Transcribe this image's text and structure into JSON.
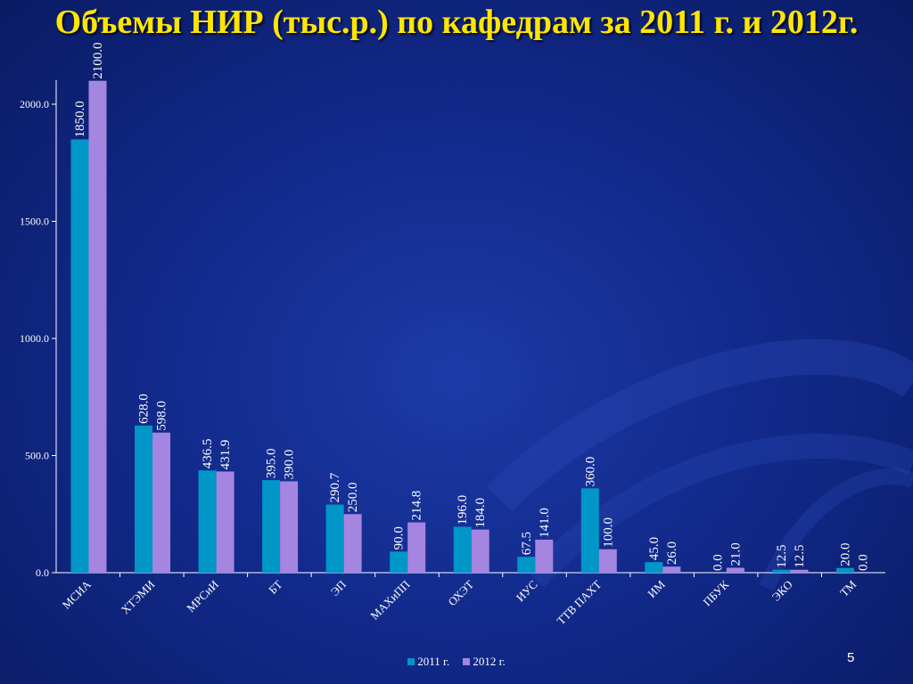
{
  "slide": {
    "title": "Объемы НИР (тыс.р.) по кафедрам за 2011 г. и 2012г.",
    "page_number": "5"
  },
  "colors": {
    "series_2011": "#0096c8",
    "series_2012": "#a485e0",
    "title": "#ffe600",
    "text": "#ffffff"
  },
  "chart_data": {
    "type": "bar",
    "title": "",
    "xlabel": "",
    "ylabel": "",
    "ylim": [
      0,
      2100
    ],
    "yticks": [
      "0.0",
      "500.0",
      "1000.0",
      "1500.0",
      "2000.0"
    ],
    "grid": false,
    "legend_position": "bottom",
    "categories": [
      "МСИА",
      "ХТЭМИ",
      "МРСиИ",
      "БТ",
      "ЭП",
      "МАХиПП",
      "ОХЭТ",
      "ИУС",
      "ТТВ ПАХТ",
      "ИМ",
      "ПБУК",
      "ЭКО",
      "ТМ"
    ],
    "series": [
      {
        "name": "2011 г.",
        "values": [
          1850.0,
          628.0,
          436.5,
          395.0,
          290.7,
          90.0,
          196.0,
          67.5,
          360.0,
          45.0,
          0.0,
          12.5,
          20.0
        ],
        "labels": [
          "1850.0",
          "628.0",
          "436.5",
          "395.0",
          "290.7",
          "90.0",
          "196.0",
          "67.5",
          "360.0",
          "45.0",
          "0.0",
          "12.5",
          "20.0"
        ]
      },
      {
        "name": "2012 г.",
        "values": [
          2100.0,
          598.0,
          431.9,
          390.0,
          250.0,
          214.8,
          184.0,
          141.0,
          100.0,
          26.0,
          21.0,
          12.5,
          0.0
        ],
        "labels": [
          "2100.0",
          "598.0",
          "431.9",
          "390.0",
          "250.0",
          "214.8",
          "184.0",
          "141.0",
          "100.0",
          "26.0",
          "21.0",
          "12.5",
          "0.0"
        ]
      }
    ]
  }
}
